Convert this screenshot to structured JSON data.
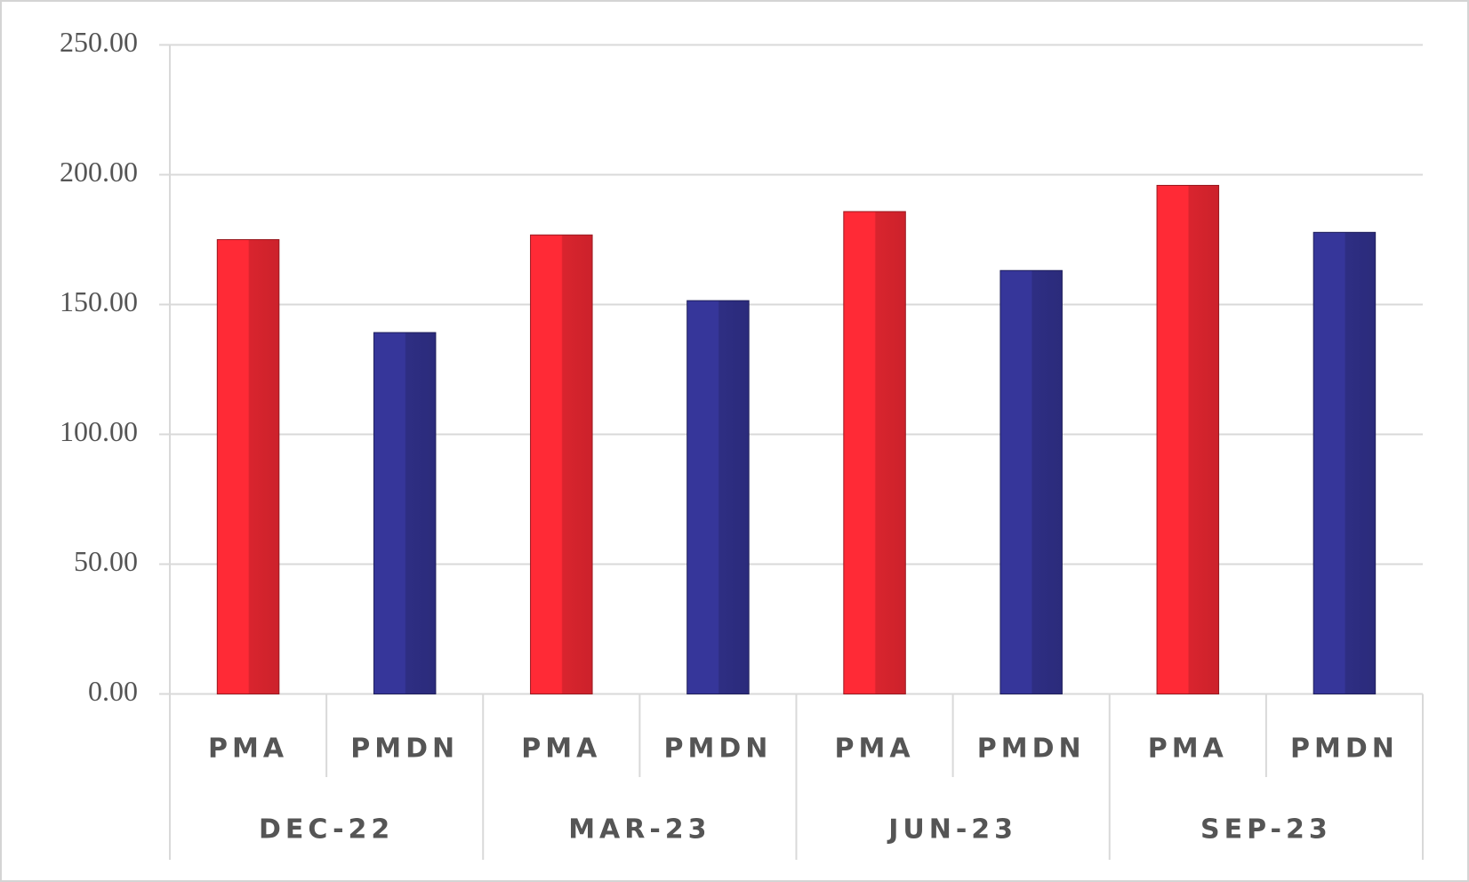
{
  "chart_data": {
    "type": "bar",
    "categories": [
      "DEC-22",
      "MAR-23",
      "JUN-23",
      "SEP-23"
    ],
    "series": [
      {
        "name": "PMA",
        "color": "#ff2a36",
        "values": [
          175,
          176.8,
          185.8,
          195.9
        ]
      },
      {
        "name": "PMDN",
        "color": "#36369a",
        "values": [
          139.2,
          151.5,
          163.1,
          177.8
        ]
      }
    ],
    "ylim": [
      0,
      250
    ],
    "yticks": [
      {
        "value": 0,
        "label": "0.00"
      },
      {
        "value": 50,
        "label": "50.00"
      },
      {
        "value": 100,
        "label": "100.00"
      },
      {
        "value": 150,
        "label": "150.00"
      },
      {
        "value": 200,
        "label": "200.00"
      },
      {
        "value": 250,
        "label": "250.00"
      }
    ],
    "grid": true
  }
}
